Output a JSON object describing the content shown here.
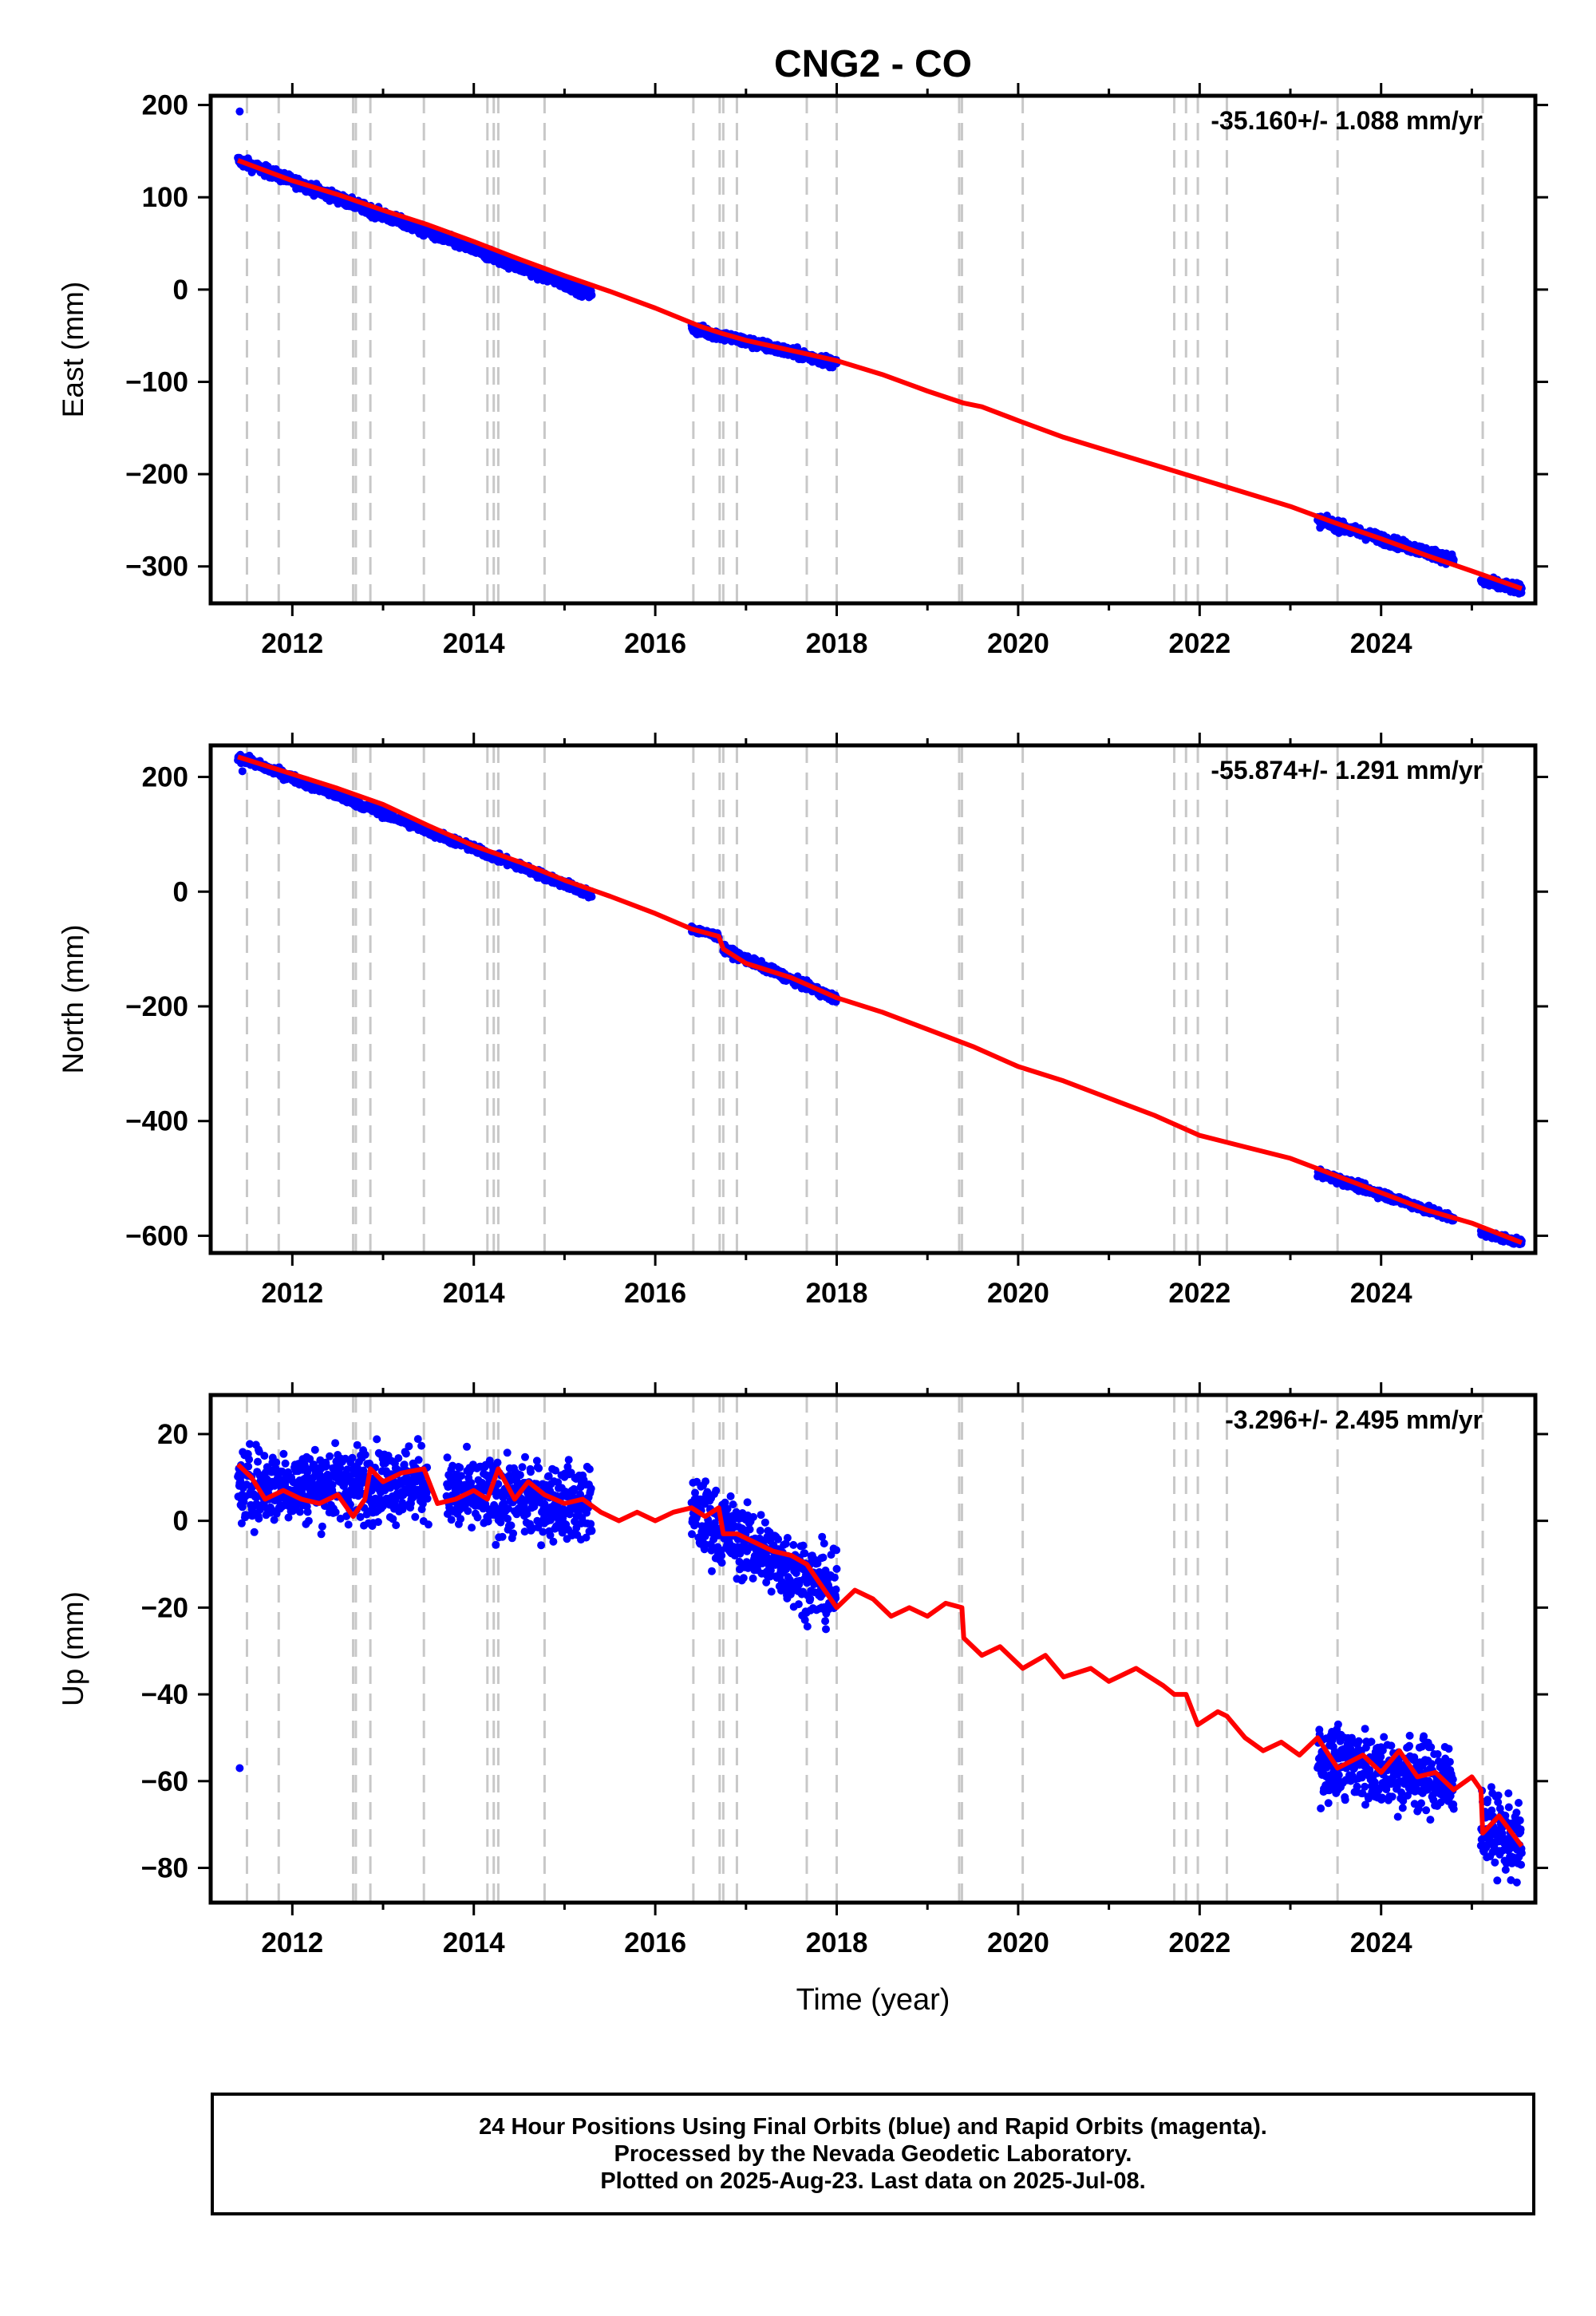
{
  "title": "CNG2 - CO",
  "xlabel": "Time (year)",
  "colors": {
    "data": "#0000ff",
    "model": "#ff0000",
    "breaks": "#c8c8c8",
    "axes": "#000000"
  },
  "break_years": [
    2011.5,
    2011.85,
    2012.67,
    2012.7,
    2012.86,
    2013.45,
    2014.15,
    2014.22,
    2014.27,
    2014.78,
    2016.42,
    2016.71,
    2016.75,
    2016.9,
    2017.67,
    2018.0,
    2019.35,
    2019.38,
    2020.05,
    2021.72,
    2021.85,
    2021.98,
    2022.3,
    2023.52,
    2025.12
  ],
  "chart_data": [
    {
      "type": "scatter",
      "panel": "east",
      "ylabel": "East (mm)",
      "rate_label": "-35.160+/- 1.088 mm/yr",
      "xlim": [
        2011.1,
        2025.7
      ],
      "ylim": [
        -340,
        210
      ],
      "yticks": [
        200,
        100,
        0,
        -100,
        -200,
        -300
      ],
      "ytick_labels": [
        "200",
        "100",
        "0",
        "−100",
        "−200",
        "−300"
      ],
      "xticks": [
        2012,
        2014,
        2016,
        2018,
        2020,
        2022,
        2024
      ],
      "xtick_labels": [
        "2012",
        "2014",
        "2016",
        "2018",
        "2020",
        "2022",
        "2024"
      ],
      "model_line": [
        [
          2011.4,
          140
        ],
        [
          2012.0,
          118
        ],
        [
          2012.5,
          103
        ],
        [
          2013.0,
          86
        ],
        [
          2013.5,
          70
        ],
        [
          2014.0,
          52
        ],
        [
          2014.5,
          33
        ],
        [
          2015.0,
          15
        ],
        [
          2015.5,
          -2
        ],
        [
          2016.0,
          -20
        ],
        [
          2016.5,
          -40
        ],
        [
          2016.75,
          -48
        ],
        [
          2017.0,
          -55
        ],
        [
          2017.5,
          -66
        ],
        [
          2018.0,
          -77
        ],
        [
          2018.5,
          -92
        ],
        [
          2019.0,
          -110
        ],
        [
          2019.4,
          -123
        ],
        [
          2019.6,
          -127
        ],
        [
          2020.0,
          -142
        ],
        [
          2020.5,
          -160
        ],
        [
          2021.0,
          -175
        ],
        [
          2021.5,
          -190
        ],
        [
          2022.0,
          -205
        ],
        [
          2022.5,
          -220
        ],
        [
          2023.0,
          -235
        ],
        [
          2023.5,
          -253
        ],
        [
          2024.0,
          -270
        ],
        [
          2024.5,
          -288
        ],
        [
          2025.0,
          -305
        ],
        [
          2025.55,
          -324
        ]
      ],
      "data_segments": [
        {
          "x": [
            2011.4,
            2015.3
          ],
          "y": [
            140,
            -5
          ],
          "spread": 4
        },
        {
          "x": [
            2016.4,
            2018.0
          ],
          "y": [
            -42,
            -80
          ],
          "spread": 4
        },
        {
          "x": [
            2023.3,
            2024.8
          ],
          "y": [
            -250,
            -293
          ],
          "spread": 4
        },
        {
          "x": [
            2025.1,
            2025.55
          ],
          "y": [
            -316,
            -325
          ],
          "spread": 4
        }
      ],
      "outliers": [
        [
          2011.42,
          193
        ]
      ]
    },
    {
      "type": "scatter",
      "panel": "north",
      "ylabel": "North (mm)",
      "rate_label": "-55.874+/- 1.291 mm/yr",
      "xlim": [
        2011.1,
        2025.7
      ],
      "ylim": [
        -630,
        255
      ],
      "yticks": [
        200,
        0,
        -200,
        -400,
        -600
      ],
      "ytick_labels": [
        "200",
        "0",
        "−200",
        "−400",
        "−600"
      ],
      "xticks": [
        2012,
        2014,
        2016,
        2018,
        2020,
        2022,
        2024
      ],
      "xtick_labels": [
        "2012",
        "2014",
        "2016",
        "2018",
        "2020",
        "2022",
        "2024"
      ],
      "model_line": [
        [
          2011.4,
          235
        ],
        [
          2012.0,
          205
        ],
        [
          2012.5,
          180
        ],
        [
          2013.0,
          152
        ],
        [
          2013.5,
          115
        ],
        [
          2014.0,
          80
        ],
        [
          2014.5,
          52
        ],
        [
          2015.0,
          20
        ],
        [
          2015.5,
          -8
        ],
        [
          2016.0,
          -38
        ],
        [
          2016.4,
          -65
        ],
        [
          2016.7,
          -78
        ],
        [
          2016.75,
          -100
        ],
        [
          2017.0,
          -125
        ],
        [
          2017.5,
          -150
        ],
        [
          2018.0,
          -185
        ],
        [
          2018.5,
          -210
        ],
        [
          2019.0,
          -240
        ],
        [
          2019.5,
          -270
        ],
        [
          2020.0,
          -305
        ],
        [
          2020.5,
          -330
        ],
        [
          2021.0,
          -360
        ],
        [
          2021.5,
          -390
        ],
        [
          2022.0,
          -425
        ],
        [
          2022.5,
          -445
        ],
        [
          2023.0,
          -465
        ],
        [
          2023.5,
          -495
        ],
        [
          2024.0,
          -525
        ],
        [
          2024.5,
          -555
        ],
        [
          2025.0,
          -578
        ],
        [
          2025.55,
          -612
        ]
      ],
      "data_segments": [
        {
          "x": [
            2011.4,
            2015.3
          ],
          "y": [
            235,
            -5
          ],
          "spread": 5
        },
        {
          "x": [
            2016.4,
            2016.7
          ],
          "y": [
            -65,
            -78
          ],
          "spread": 4
        },
        {
          "x": [
            2016.75,
            2018.0
          ],
          "y": [
            -100,
            -188
          ],
          "spread": 5
        },
        {
          "x": [
            2023.3,
            2024.8
          ],
          "y": [
            -490,
            -570
          ],
          "spread": 5
        },
        {
          "x": [
            2025.1,
            2025.55
          ],
          "y": [
            -595,
            -612
          ],
          "spread": 4
        }
      ],
      "outliers": [
        [
          2011.45,
          210
        ]
      ]
    },
    {
      "type": "scatter",
      "panel": "up",
      "ylabel": "Up (mm)",
      "rate_label": "-3.296+/- 2.495 mm/yr",
      "xlim": [
        2011.1,
        2025.7
      ],
      "ylim": [
        -88,
        29
      ],
      "yticks": [
        20,
        0,
        -20,
        -40,
        -60,
        -80
      ],
      "ytick_labels": [
        "20",
        "0",
        "−20",
        "−40",
        "−60",
        "−80"
      ],
      "xticks": [
        2012,
        2014,
        2016,
        2018,
        2020,
        2022,
        2024
      ],
      "xtick_labels": [
        "2012",
        "2014",
        "2016",
        "2018",
        "2020",
        "2022",
        "2024"
      ],
      "model_line": [
        [
          2011.4,
          13
        ],
        [
          2011.55,
          10
        ],
        [
          2011.7,
          5
        ],
        [
          2011.9,
          7
        ],
        [
          2012.1,
          5
        ],
        [
          2012.3,
          4
        ],
        [
          2012.5,
          6
        ],
        [
          2012.67,
          1
        ],
        [
          2012.8,
          5
        ],
        [
          2012.86,
          12
        ],
        [
          2013.0,
          9
        ],
        [
          2013.2,
          11
        ],
        [
          2013.45,
          12
        ],
        [
          2013.6,
          4
        ],
        [
          2013.8,
          5
        ],
        [
          2014.0,
          7
        ],
        [
          2014.15,
          5
        ],
        [
          2014.27,
          12
        ],
        [
          2014.45,
          5
        ],
        [
          2014.6,
          9
        ],
        [
          2014.78,
          6
        ],
        [
          2015.0,
          4
        ],
        [
          2015.2,
          5
        ],
        [
          2015.4,
          2
        ],
        [
          2015.6,
          0
        ],
        [
          2015.8,
          2
        ],
        [
          2016.0,
          0
        ],
        [
          2016.2,
          2
        ],
        [
          2016.4,
          3
        ],
        [
          2016.55,
          1
        ],
        [
          2016.7,
          3
        ],
        [
          2016.75,
          -3
        ],
        [
          2016.9,
          -3
        ],
        [
          2017.1,
          -5
        ],
        [
          2017.3,
          -7
        ],
        [
          2017.5,
          -8
        ],
        [
          2017.67,
          -10
        ],
        [
          2017.8,
          -14
        ],
        [
          2018.0,
          -20
        ],
        [
          2018.2,
          -16
        ],
        [
          2018.4,
          -18
        ],
        [
          2018.6,
          -22
        ],
        [
          2018.8,
          -20
        ],
        [
          2019.0,
          -22
        ],
        [
          2019.2,
          -19
        ],
        [
          2019.38,
          -20
        ],
        [
          2019.4,
          -27
        ],
        [
          2019.6,
          -31
        ],
        [
          2019.8,
          -29
        ],
        [
          2020.05,
          -34
        ],
        [
          2020.3,
          -31
        ],
        [
          2020.5,
          -36
        ],
        [
          2020.8,
          -34
        ],
        [
          2021.0,
          -37
        ],
        [
          2021.3,
          -34
        ],
        [
          2021.6,
          -38
        ],
        [
          2021.72,
          -40
        ],
        [
          2021.85,
          -40
        ],
        [
          2021.98,
          -47
        ],
        [
          2022.2,
          -44
        ],
        [
          2022.3,
          -45
        ],
        [
          2022.5,
          -50
        ],
        [
          2022.7,
          -53
        ],
        [
          2022.9,
          -51
        ],
        [
          2023.1,
          -54
        ],
        [
          2023.3,
          -50
        ],
        [
          2023.52,
          -57
        ],
        [
          2023.8,
          -54
        ],
        [
          2024.0,
          -58
        ],
        [
          2024.2,
          -53
        ],
        [
          2024.4,
          -59
        ],
        [
          2024.6,
          -58
        ],
        [
          2024.8,
          -62
        ],
        [
          2025.0,
          -59
        ],
        [
          2025.1,
          -62
        ],
        [
          2025.12,
          -72
        ],
        [
          2025.3,
          -68
        ],
        [
          2025.55,
          -75
        ]
      ],
      "data_segments": [
        {
          "x": [
            2011.4,
            2013.5
          ],
          "y": [
            8,
            9
          ],
          "spread": 6
        },
        {
          "x": [
            2013.7,
            2015.3
          ],
          "y": [
            6,
            4
          ],
          "spread": 6
        },
        {
          "x": [
            2016.4,
            2018.0
          ],
          "y": [
            2,
            -17
          ],
          "spread": 6
        },
        {
          "x": [
            2023.3,
            2024.8
          ],
          "y": [
            -55,
            -60
          ],
          "spread": 6
        },
        {
          "x": [
            2025.1,
            2025.55
          ],
          "y": [
            -70,
            -75
          ],
          "spread": 6
        }
      ],
      "outliers": [
        [
          2011.42,
          -57
        ]
      ]
    }
  ],
  "footer": {
    "line1": "24 Hour Positions Using Final Orbits (blue) and Rapid Orbits (magenta).",
    "line2": "Processed by the Nevada Geodetic Laboratory.",
    "line3": "Plotted on 2025-Aug-23. Last data on 2025-Jul-08."
  }
}
